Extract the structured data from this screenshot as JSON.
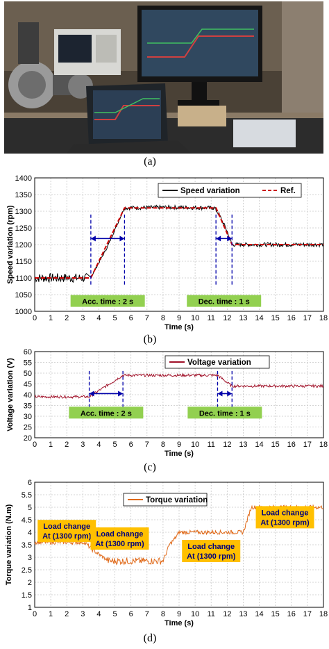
{
  "panel_a": {
    "caption": "(a)"
  },
  "panel_b": {
    "caption": "(b)"
  },
  "panel_c": {
    "caption": "(c)"
  },
  "panel_d": {
    "caption": "(d)"
  },
  "chart_data": [
    {
      "type": "line",
      "id": "speed",
      "title": "",
      "xlabel": "Time (s)",
      "ylabel": "Speed variation (rpm)",
      "xlim": [
        0,
        18
      ],
      "ylim": [
        1000,
        1400
      ],
      "xticks": [
        0,
        1,
        2,
        3,
        4,
        5,
        6,
        7,
        8,
        9,
        10,
        11,
        12,
        13,
        14,
        15,
        16,
        17,
        18
      ],
      "yticks": [
        1000,
        1050,
        1100,
        1150,
        1200,
        1250,
        1300,
        1350,
        1400
      ],
      "grid": true,
      "legend": "top-right",
      "series": [
        {
          "name": "Speed variation",
          "color": "#000000",
          "style": "solid",
          "x": [
            0,
            3.3,
            3.6,
            4.5,
            5.6,
            8,
            11.2,
            11.5,
            12,
            12.3,
            14,
            18
          ],
          "y": [
            1100,
            1100,
            1110,
            1190,
            1310,
            1312,
            1310,
            1290,
            1240,
            1200,
            1200,
            1200
          ]
        },
        {
          "name": "Ref.",
          "color": "#cc0000",
          "style": "dashed",
          "x": [
            0,
            3.5,
            5.6,
            11.3,
            12.3,
            18
          ],
          "y": [
            1100,
            1100,
            1310,
            1310,
            1200,
            1200
          ]
        }
      ],
      "annotations": [
        {
          "text": "Acc. time : 2 s",
          "x_from": 3.5,
          "x_to": 5.6
        },
        {
          "text": "Dec. time : 1 s",
          "x_from": 11.3,
          "x_to": 12.3
        }
      ]
    },
    {
      "type": "line",
      "id": "voltage",
      "title": "",
      "xlabel": "Time (s)",
      "ylabel": "Voltage variation (V)",
      "xlim": [
        0,
        18
      ],
      "ylim": [
        20,
        60
      ],
      "xticks": [
        0,
        1,
        2,
        3,
        4,
        5,
        6,
        7,
        8,
        9,
        10,
        11,
        12,
        13,
        14,
        15,
        16,
        17,
        18
      ],
      "yticks": [
        20,
        25,
        30,
        35,
        40,
        45,
        50,
        55,
        60
      ],
      "grid": true,
      "legend": "top-center",
      "series": [
        {
          "name": "Voltage variation",
          "color": "#a01028",
          "style": "solid",
          "x": [
            0,
            3.4,
            5.5,
            11.4,
            12.3,
            18
          ],
          "y": [
            39,
            39,
            49,
            49,
            44,
            44
          ]
        }
      ],
      "annotations": [
        {
          "text": "Acc. time : 2 s",
          "x_from": 3.4,
          "x_to": 5.5
        },
        {
          "text": "Dec. time : 1 s",
          "x_from": 11.4,
          "x_to": 12.3
        }
      ]
    },
    {
      "type": "line",
      "id": "torque",
      "title": "",
      "xlabel": "Time (s)",
      "ylabel": "Torque variation (N.m)",
      "xlim": [
        0,
        18
      ],
      "ylim": [
        1,
        6
      ],
      "xticks": [
        0,
        1,
        2,
        3,
        4,
        5,
        6,
        7,
        8,
        9,
        10,
        11,
        12,
        13,
        14,
        15,
        16,
        17,
        18
      ],
      "yticks": [
        1,
        1.5,
        2,
        2.5,
        3,
        3.5,
        4,
        4.5,
        5,
        5.5,
        6
      ],
      "grid": true,
      "legend": "top-center",
      "series": [
        {
          "name": "Torque variation",
          "color": "#e06a1a",
          "style": "solid",
          "x": [
            0,
            3.1,
            3.6,
            4.6,
            8.0,
            8.4,
            8.8,
            9.0,
            13.0,
            13.5,
            18
          ],
          "y": [
            3.6,
            3.6,
            3.3,
            2.85,
            2.85,
            3.5,
            3.8,
            4.0,
            4.0,
            5.0,
            5.0
          ]
        }
      ],
      "annotations": [
        {
          "text": "Load change At (1300 rpm)",
          "region": "0-3 s"
        },
        {
          "text": "Load change At (1300 rpm)",
          "region": "4.5-8 s"
        },
        {
          "text": "Load change At (1300 rpm)",
          "region": "9-13 s"
        },
        {
          "text": "Load change At (1300 rpm)",
          "region": "13.5-18 s"
        }
      ]
    }
  ]
}
